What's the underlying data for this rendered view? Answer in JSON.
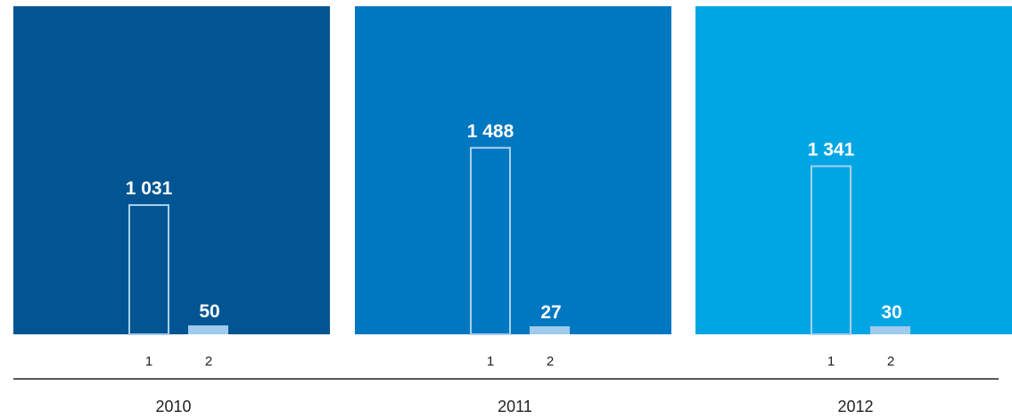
{
  "colors": {
    "panel_2010": "#005592",
    "panel_2011": "#0078c1",
    "panel_2012": "#00a6e3",
    "outline_bar": "#a9cfee",
    "filled_bar": "#9fcbee",
    "axis_line": "#222222"
  },
  "chart_data": {
    "type": "bar",
    "categories": [
      "1",
      "2"
    ],
    "groups": [
      {
        "year": "2010",
        "values": [
          1031
        ],
        "labels": [
          "1 031",
          "50"
        ],
        "data": [
          1031,
          50
        ]
      },
      {
        "year": "2011",
        "values": [
          1488
        ],
        "labels": [
          "1 488",
          "27"
        ],
        "data": [
          1488,
          27
        ]
      },
      {
        "year": "2012",
        "values": [
          1341
        ],
        "labels": [
          "1 341",
          "30"
        ],
        "data": [
          1341,
          30
        ]
      }
    ],
    "title": "",
    "xlabel": "",
    "ylabel": "",
    "ylim": [
      0,
      1600
    ],
    "grid": false,
    "legend": "none"
  }
}
